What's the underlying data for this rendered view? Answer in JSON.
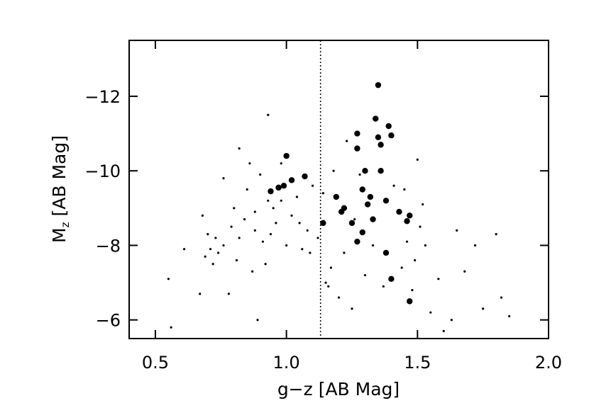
{
  "chart_data": {
    "type": "scatter",
    "xlabel": "g−z [AB Mag]",
    "ylabel_symbol": "M",
    "ylabel_subscript": "z",
    "ylabel_unit": "[AB Mag]",
    "xlim": [
      0.4,
      2.0
    ],
    "ylim": [
      -5.5,
      -13.5
    ],
    "xticks": [
      {
        "value": 0.5,
        "label": "0.5"
      },
      {
        "value": 1.0,
        "label": "1.0"
      },
      {
        "value": 1.5,
        "label": "1.5"
      },
      {
        "value": 2.0,
        "label": "2.0"
      }
    ],
    "yticks": [
      {
        "value": -6,
        "label": "−6"
      },
      {
        "value": -8,
        "label": "−8"
      },
      {
        "value": -10,
        "label": "−10"
      },
      {
        "value": -12,
        "label": "−12"
      }
    ],
    "vline": 1.13,
    "series": [
      {
        "color": "#000000",
        "size": 1.6,
        "x": [
          0.55,
          0.56,
          0.61,
          0.67,
          0.68,
          0.69,
          0.7,
          0.71,
          0.72,
          0.73,
          0.74,
          0.76,
          0.78,
          0.79,
          0.8,
          0.81,
          0.82,
          0.84,
          0.85,
          0.86,
          0.87,
          0.88,
          0.89,
          0.9,
          0.91,
          0.92,
          0.93,
          0.94,
          0.95,
          0.96,
          0.98,
          1.0,
          1.02,
          1.04,
          1.06,
          1.08,
          1.1,
          1.12,
          1.15,
          1.16,
          1.17,
          1.18,
          1.2,
          1.22,
          1.23,
          1.25,
          1.28,
          1.3,
          1.33,
          1.37,
          1.41,
          1.44,
          1.46,
          1.48,
          1.49,
          1.5,
          1.51,
          1.53,
          1.55,
          1.58,
          1.6,
          1.63,
          1.65,
          1.68,
          1.72,
          1.75,
          1.8,
          1.82,
          1.85,
          0.93,
          0.98,
          1.05,
          1.14,
          1.26,
          1.45,
          1.52,
          0.88,
          0.82,
          0.76,
          1.09
        ],
        "y": [
          -7.1,
          -5.8,
          -7.9,
          -6.7,
          -8.8,
          -7.7,
          -8.3,
          -7.9,
          -7.5,
          -8.2,
          -7.8,
          -9.8,
          -6.7,
          -8.5,
          -9.0,
          -7.6,
          -10.6,
          -8.7,
          -9.5,
          -10.2,
          -7.3,
          -8.9,
          -6.0,
          -9.9,
          -8.1,
          -7.5,
          -11.5,
          -8.3,
          -9.0,
          -8.6,
          -9.2,
          -8.0,
          -8.8,
          -9.3,
          -7.9,
          -8.4,
          -9.6,
          -8.2,
          -7.0,
          -6.9,
          -7.4,
          -10.0,
          -6.6,
          -7.8,
          -10.8,
          -6.3,
          -9.9,
          -7.2,
          -8.0,
          -6.9,
          -9.6,
          -7.4,
          -8.1,
          -6.8,
          -7.6,
          -10.3,
          -8.5,
          -8.0,
          -6.2,
          -7.1,
          -5.7,
          -6.0,
          -8.4,
          -7.3,
          -8.0,
          -6.3,
          -8.3,
          -6.6,
          -6.1,
          -9.2,
          -10.2,
          -8.6,
          -9.4,
          -8.7,
          -9.5,
          -9.1,
          -8.4,
          -8.2,
          -8.0,
          -7.8
        ]
      },
      {
        "color": "#000000",
        "size": 4.2,
        "x": [
          1.35,
          1.34,
          1.39,
          1.35,
          1.4,
          1.36,
          1.27,
          1.27,
          1.36,
          1.3,
          1.0,
          1.07,
          1.02,
          0.99,
          0.97,
          0.94,
          1.29,
          1.32,
          1.31,
          1.38,
          1.22,
          1.19,
          1.21,
          1.14,
          1.25,
          1.33,
          1.27,
          1.29,
          1.43,
          1.47,
          1.46,
          1.38,
          1.4,
          1.47
        ],
        "y": [
          -12.3,
          -11.4,
          -11.2,
          -10.9,
          -10.95,
          -10.7,
          -11.0,
          -10.6,
          -10.0,
          -10.0,
          -10.4,
          -9.85,
          -9.75,
          -9.6,
          -9.55,
          -9.45,
          -9.5,
          -9.3,
          -9.1,
          -9.2,
          -9.0,
          -9.3,
          -8.9,
          -8.6,
          -8.6,
          -8.7,
          -8.1,
          -8.35,
          -8.9,
          -8.8,
          -8.65,
          -7.8,
          -7.1,
          -6.5
        ]
      }
    ]
  }
}
